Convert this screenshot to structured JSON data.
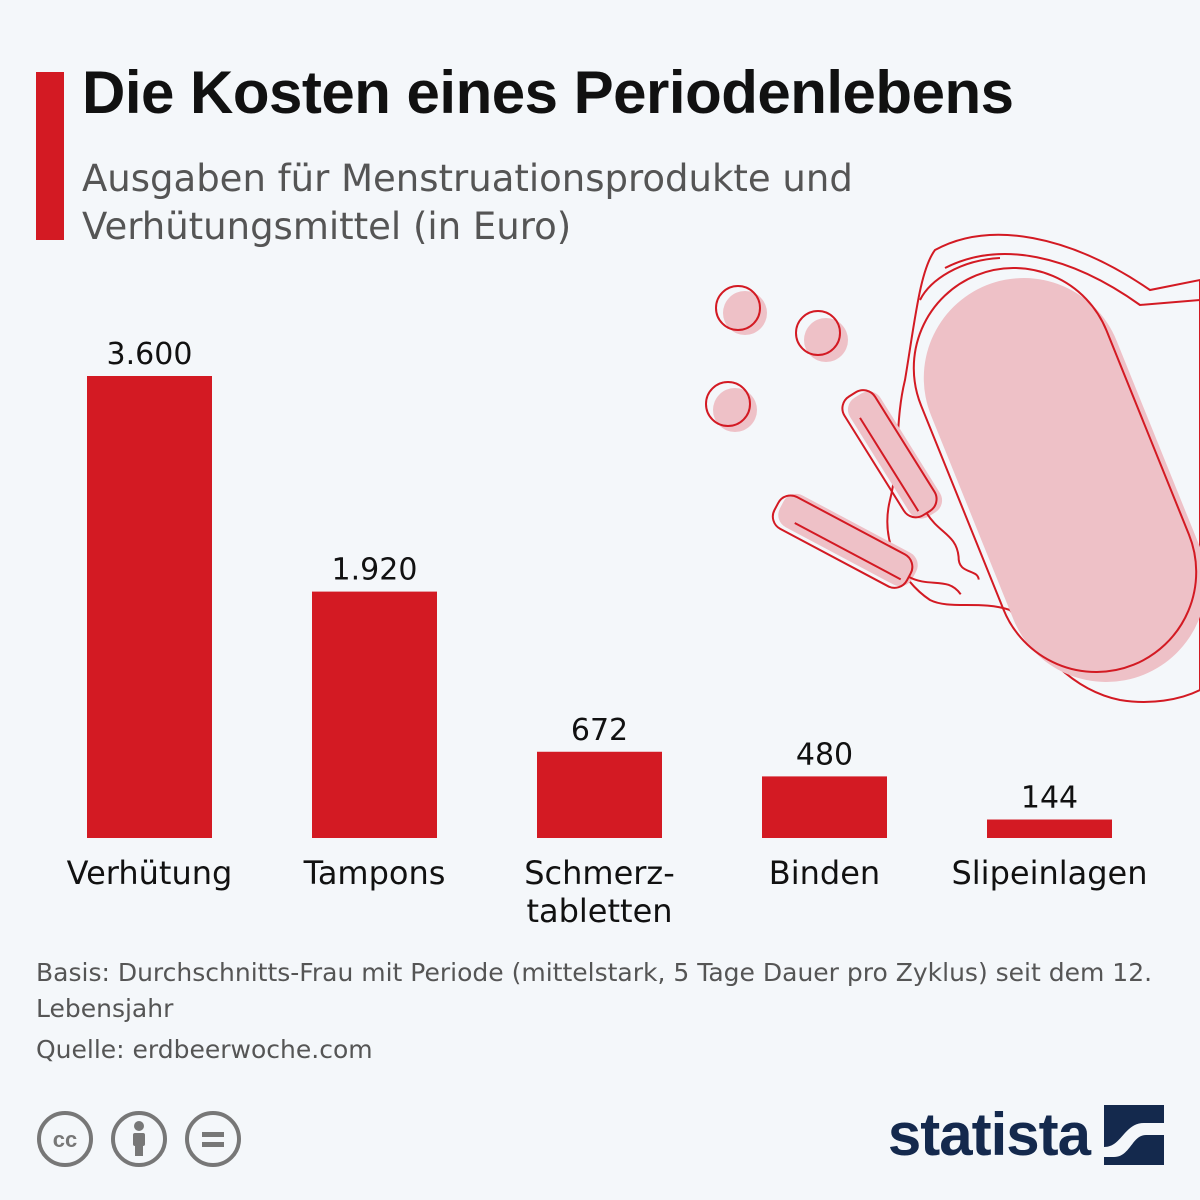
{
  "header": {
    "title": "Die Kosten eines Periodenlebens",
    "subtitle": "Ausgaben für Menstruationsprodukte und Verhütungsmittel (in Euro)"
  },
  "chart_data": {
    "type": "bar",
    "categories": [
      "Verhütung",
      "Tampons",
      "Schmerz-\ntabletten",
      "Binden",
      "Slipeinlagen"
    ],
    "values": [
      3600,
      1920,
      672,
      480,
      144
    ],
    "value_labels": [
      "3.600",
      "1.920",
      "672",
      "480",
      "144"
    ],
    "title": "Die Kosten eines Periodenlebens",
    "subtitle": "Ausgaben für Menstruationsprodukte und Verhütungsmittel (in Euro)",
    "ylim": [
      0,
      3600
    ],
    "grid": false,
    "color": "#d31a23"
  },
  "footer": {
    "note": "Basis: Durchschnitts-Frau mit Periode (mittelstark, 5 Tage Dauer pro Zyklus) seit dem 12. Lebensjahr",
    "source": "Quelle: erdbeerwoche.com",
    "brand": "statista",
    "license_icons": [
      "cc-icon",
      "person-attribution-icon",
      "equals-noderivs-icon"
    ]
  },
  "colors": {
    "accent": "#d31a23",
    "illustration_fill": "#eec1c7",
    "brand": "#14294d",
    "background": "#f4f7fa"
  }
}
